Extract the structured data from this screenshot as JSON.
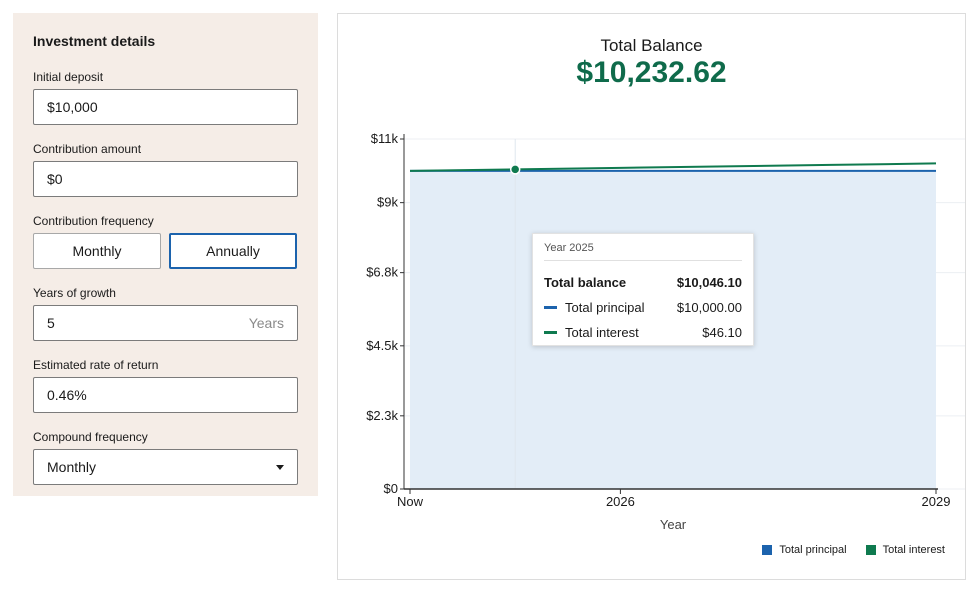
{
  "form": {
    "title": "Investment details",
    "initial_deposit": {
      "label": "Initial deposit",
      "value": "$10,000"
    },
    "contribution_amount": {
      "label": "Contribution amount",
      "value": "$0"
    },
    "contribution_frequency": {
      "label": "Contribution frequency",
      "options": [
        "Monthly",
        "Annually"
      ],
      "selected": "Annually"
    },
    "years_of_growth": {
      "label": "Years of growth",
      "value": "5",
      "suffix": "Years"
    },
    "rate_of_return": {
      "label": "Estimated rate of return",
      "value": "0.46%"
    },
    "compound_frequency": {
      "label": "Compound frequency",
      "value": "Monthly"
    }
  },
  "summary": {
    "label": "Total Balance",
    "value": "$10,232.62"
  },
  "chart_data": {
    "type": "area",
    "x": [
      2024,
      2025,
      2026,
      2027,
      2028,
      2029
    ],
    "x_ticks": [
      {
        "x": 2024,
        "label": "Now"
      },
      {
        "x": 2026,
        "label": "2026"
      },
      {
        "x": 2029,
        "label": "2029"
      }
    ],
    "y_ticks": [
      {
        "y": 0,
        "label": "$0"
      },
      {
        "y": 2300,
        "label": "$2.3k"
      },
      {
        "y": 4500,
        "label": "$4.5k"
      },
      {
        "y": 6800,
        "label": "$6.8k"
      },
      {
        "y": 9000,
        "label": "$9k"
      },
      {
        "y": 11000,
        "label": "$11k"
      }
    ],
    "ylim": [
      0,
      11000
    ],
    "xlabel": "Year",
    "ylabel": "",
    "grid": true,
    "series": [
      {
        "name": "Total principal",
        "color": "#1c63ad",
        "values": [
          10000,
          10000,
          10000,
          10000,
          10000,
          10000
        ]
      },
      {
        "name": "Total interest",
        "color": "#0f7a4f",
        "values": [
          0,
          46.1,
          92.4,
          138.9,
          185.6,
          232.62
        ]
      }
    ],
    "area_color": "#e3edf7",
    "legend_position": "bottom-right",
    "tooltip": {
      "year": "Year 2025",
      "total_label": "Total balance",
      "total_value": "$10,046.10",
      "rows": [
        {
          "label": "Total principal",
          "value": "$10,000.00",
          "color": "#1c63ad"
        },
        {
          "label": "Total interest",
          "value": "$46.10",
          "color": "#0f7a4f"
        }
      ]
    }
  }
}
